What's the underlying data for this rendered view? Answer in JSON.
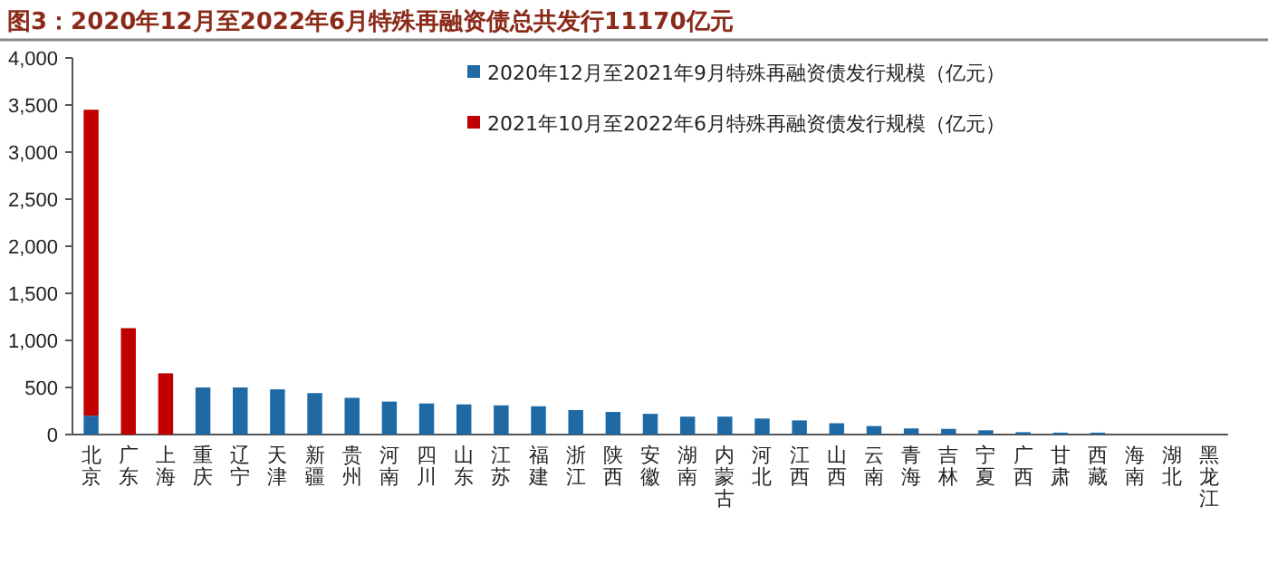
{
  "chart_data": {
    "type": "bar",
    "stacked": true,
    "title": "图3：2020年12月至2022年6月特殊再融资债总共发行11170亿元",
    "categories": [
      "北京",
      "广东",
      "上海",
      "重庆",
      "辽宁",
      "天津",
      "新疆",
      "贵州",
      "河南",
      "四川",
      "山东",
      "江苏",
      "福建",
      "浙江",
      "陕西",
      "安徽",
      "湖南",
      "内蒙古",
      "河北",
      "江西",
      "山西",
      "云南",
      "青海",
      "吉林",
      "宁夏",
      "广西",
      "甘肃",
      "西藏",
      "海南",
      "湖北",
      "黑龙江"
    ],
    "series": [
      {
        "name": "2020年12月至2021年9月特殊再融资债发行规模（亿元）",
        "color": "#1f6aa5",
        "values": [
          200,
          0,
          0,
          500,
          500,
          480,
          440,
          390,
          350,
          330,
          320,
          310,
          300,
          260,
          240,
          220,
          190,
          190,
          170,
          150,
          120,
          90,
          65,
          60,
          45,
          25,
          20,
          20,
          0,
          0,
          0
        ]
      },
      {
        "name": "2021年10月至2022年6月特殊再融资债发行规模（亿元）",
        "color": "#c00000",
        "values": [
          3250,
          1130,
          650,
          0,
          0,
          0,
          0,
          0,
          0,
          0,
          0,
          0,
          0,
          0,
          0,
          0,
          0,
          0,
          0,
          0,
          0,
          0,
          0,
          0,
          0,
          0,
          0,
          0,
          0,
          0,
          0
        ]
      }
    ],
    "ylim": [
      0,
      4000
    ],
    "yticks": [
      0,
      {
        "value": 500,
        "label": "500"
      },
      {
        "value": 1000,
        "label": "1,000"
      },
      {
        "value": 1500,
        "label": "1,500"
      },
      {
        "value": 2000,
        "label": "2,000"
      },
      {
        "value": 2500,
        "label": "2,500"
      },
      {
        "value": 3000,
        "label": "3,000"
      },
      {
        "value": 3500,
        "label": "3,500"
      },
      {
        "value": 4000,
        "label": "4,000"
      }
    ],
    "legend": "top right",
    "grid": false
  }
}
